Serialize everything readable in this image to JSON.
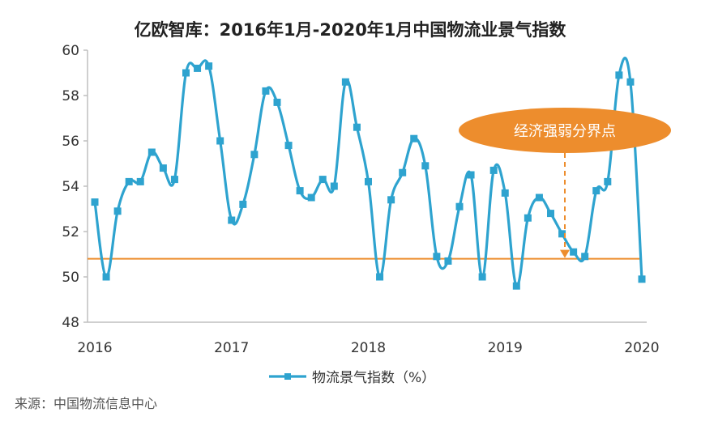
{
  "chart_data": {
    "type": "line",
    "title": "亿欧智库：2016年1月-2020年1月中国物流业景气指数",
    "xlabel": "",
    "ylabel": "",
    "ylim": [
      48,
      60
    ],
    "yticks": [
      "48",
      "50",
      "52",
      "54",
      "56",
      "58",
      "60"
    ],
    "xticks": [
      "2016",
      "2017",
      "2018",
      "2019",
      "2020"
    ],
    "series": [
      {
        "name": "物流景气指数（%）",
        "color": "#2ea3cf",
        "x": [
          0,
          1,
          2,
          3,
          4,
          5,
          6,
          7,
          8,
          9,
          10,
          11,
          12,
          13,
          14,
          15,
          16,
          17,
          18,
          19,
          20,
          21,
          22,
          23,
          24,
          25,
          26,
          27,
          28,
          29,
          30,
          31,
          32,
          33,
          34,
          35,
          36,
          37,
          38,
          39,
          40,
          41,
          42,
          43,
          44,
          45,
          46,
          47,
          48
        ],
        "values": [
          53.3,
          50.0,
          52.9,
          54.2,
          54.2,
          55.5,
          54.8,
          54.3,
          59.0,
          59.2,
          59.3,
          56.0,
          52.5,
          53.2,
          55.4,
          58.2,
          57.7,
          55.8,
          53.8,
          53.5,
          54.3,
          54.0,
          58.6,
          56.6,
          54.2,
          50.0,
          53.4,
          54.6,
          56.1,
          54.9,
          50.9,
          50.7,
          53.1,
          54.5,
          50.0,
          54.7,
          53.7,
          49.6,
          52.6,
          53.5,
          52.8,
          51.9,
          51.1,
          50.9,
          53.8,
          54.2,
          58.9,
          58.6,
          49.9
        ]
      }
    ],
    "threshold": {
      "value": 50.8,
      "color": "#ed8d2d"
    },
    "annotation": {
      "text": "经济强弱分界点",
      "color": "#ed8d2d"
    },
    "legend": {
      "label": "物流景气指数（%）",
      "position": "bottom-center"
    }
  },
  "source": "来源：中国物流信息中心"
}
